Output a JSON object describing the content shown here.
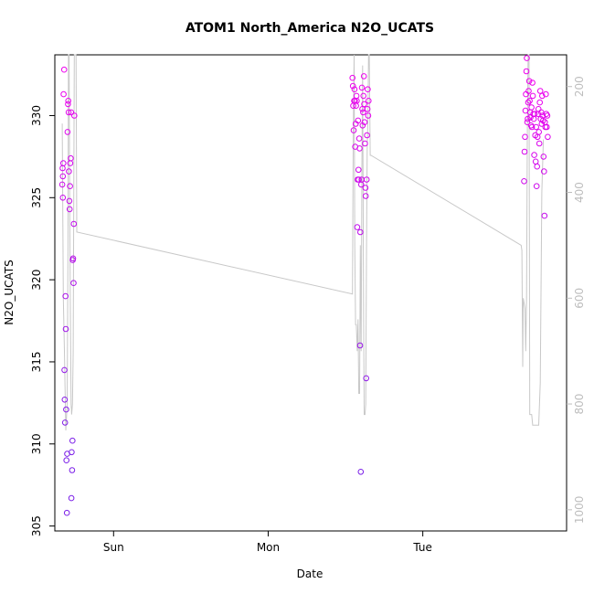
{
  "chart_data": {
    "type": "scatter",
    "title": "ATOM1 North_America N2O_UCATS",
    "xlabel": "Date",
    "ylabel": "N2O_UCATS",
    "x_ticks": [
      "Sun",
      "Mon",
      "Tue"
    ],
    "x_tick_days": [
      1,
      2,
      3
    ],
    "x_range_days": [
      0.62,
      3.93
    ],
    "ylim": [
      304.7,
      333.7
    ],
    "y_ticks": [
      305,
      310,
      315,
      320,
      325,
      330
    ],
    "right_axis": {
      "lim": [
        1040,
        140
      ],
      "ticks": [
        200,
        400,
        600,
        800,
        1000
      ],
      "color": "#bdbdbd"
    },
    "point_color_low": "#7b1fe8",
    "point_color_high": "#ee00ee",
    "pressure_color": "#c8c8c8",
    "points": [
      [
        0.668,
        325.8
      ],
      [
        0.67,
        326.8
      ],
      [
        0.672,
        326.3
      ],
      [
        0.672,
        325.0
      ],
      [
        0.675,
        327.1
      ],
      [
        0.677,
        331.3
      ],
      [
        0.68,
        332.8
      ],
      [
        0.682,
        314.5
      ],
      [
        0.684,
        312.7
      ],
      [
        0.686,
        311.3
      ],
      [
        0.689,
        319.0
      ],
      [
        0.691,
        317.0
      ],
      [
        0.693,
        312.1
      ],
      [
        0.695,
        309.0
      ],
      [
        0.698,
        305.8
      ],
      [
        0.7,
        309.4
      ],
      [
        0.702,
        329.0
      ],
      [
        0.705,
        330.7
      ],
      [
        0.707,
        330.9
      ],
      [
        0.709,
        330.2
      ],
      [
        0.711,
        326.6
      ],
      [
        0.714,
        324.8
      ],
      [
        0.716,
        324.3
      ],
      [
        0.718,
        325.7
      ],
      [
        0.72,
        327.1
      ],
      [
        0.723,
        327.4
      ],
      [
        0.725,
        330.2
      ],
      [
        0.727,
        306.7
      ],
      [
        0.729,
        309.5
      ],
      [
        0.732,
        308.4
      ],
      [
        0.734,
        310.2
      ],
      [
        0.736,
        321.2
      ],
      [
        0.738,
        321.3
      ],
      [
        0.741,
        319.8
      ],
      [
        0.743,
        323.4
      ],
      [
        0.746,
        330.0
      ],
      [
        2.545,
        332.3
      ],
      [
        2.548,
        331.8
      ],
      [
        2.55,
        330.6
      ],
      [
        2.553,
        329.1
      ],
      [
        2.556,
        330.9
      ],
      [
        2.558,
        331.6
      ],
      [
        2.561,
        330.9
      ],
      [
        2.563,
        328.1
      ],
      [
        2.566,
        329.5
      ],
      [
        2.568,
        330.6
      ],
      [
        2.571,
        331.2
      ],
      [
        2.573,
        330.9
      ],
      [
        2.576,
        323.2
      ],
      [
        2.579,
        326.1
      ],
      [
        2.581,
        329.7
      ],
      [
        2.584,
        326.7
      ],
      [
        2.586,
        326.1
      ],
      [
        2.589,
        328.6
      ],
      [
        2.591,
        328.0
      ],
      [
        2.594,
        316.0
      ],
      [
        2.596,
        322.9
      ],
      [
        2.599,
        308.3
      ],
      [
        2.601,
        325.8
      ],
      [
        2.604,
        326.1
      ],
      [
        2.606,
        331.7
      ],
      [
        2.609,
        330.4
      ],
      [
        2.611,
        329.4
      ],
      [
        2.614,
        330.2
      ],
      [
        2.616,
        331.2
      ],
      [
        2.619,
        332.4
      ],
      [
        2.621,
        330.7
      ],
      [
        2.624,
        329.6
      ],
      [
        2.626,
        328.3
      ],
      [
        2.629,
        325.6
      ],
      [
        2.631,
        325.1
      ],
      [
        2.634,
        314.0
      ],
      [
        2.637,
        326.1
      ],
      [
        2.639,
        328.8
      ],
      [
        2.642,
        330.4
      ],
      [
        2.644,
        331.6
      ],
      [
        2.647,
        330.0
      ],
      [
        2.649,
        330.9
      ],
      [
        3.655,
        326.0
      ],
      [
        3.658,
        327.8
      ],
      [
        3.661,
        328.7
      ],
      [
        3.664,
        330.3
      ],
      [
        3.667,
        331.3
      ],
      [
        3.67,
        332.7
      ],
      [
        3.673,
        333.5
      ],
      [
        3.676,
        329.6
      ],
      [
        3.679,
        329.8
      ],
      [
        3.682,
        330.8
      ],
      [
        3.685,
        331.5
      ],
      [
        3.688,
        332.1
      ],
      [
        3.691,
        330.9
      ],
      [
        3.694,
        330.2
      ],
      [
        3.697,
        329.9
      ],
      [
        3.7,
        329.4
      ],
      [
        3.703,
        330.5
      ],
      [
        3.706,
        329.3
      ],
      [
        3.709,
        332.0
      ],
      [
        3.712,
        331.2
      ],
      [
        3.715,
        330.1
      ],
      [
        3.718,
        329.8
      ],
      [
        3.721,
        327.6
      ],
      [
        3.724,
        330.1
      ],
      [
        3.727,
        328.8
      ],
      [
        3.73,
        327.2
      ],
      [
        3.733,
        329.3
      ],
      [
        3.736,
        325.7
      ],
      [
        3.739,
        326.9
      ],
      [
        3.742,
        328.7
      ],
      [
        3.745,
        330.1
      ],
      [
        3.748,
        330.4
      ],
      [
        3.751,
        329.0
      ],
      [
        3.754,
        328.3
      ],
      [
        3.757,
        330.8
      ],
      [
        3.76,
        331.5
      ],
      [
        3.763,
        329.8
      ],
      [
        3.766,
        330.2
      ],
      [
        3.769,
        329.5
      ],
      [
        3.772,
        331.2
      ],
      [
        3.775,
        330.0
      ],
      [
        3.778,
        329.7
      ],
      [
        3.781,
        327.5
      ],
      [
        3.784,
        326.6
      ],
      [
        3.787,
        323.9
      ],
      [
        3.79,
        329.6
      ],
      [
        3.793,
        329.3
      ],
      [
        3.796,
        331.3
      ],
      [
        3.799,
        330.1
      ],
      [
        3.802,
        329.3
      ],
      [
        3.805,
        330.0
      ],
      [
        3.808,
        328.7
      ]
    ],
    "pressure_line": [
      [
        0.668,
        270
      ],
      [
        0.675,
        600
      ],
      [
        0.682,
        700
      ],
      [
        0.691,
        850
      ],
      [
        0.7,
        800
      ],
      [
        0.705,
        500
      ],
      [
        0.708,
        140
      ],
      [
        0.712,
        140
      ],
      [
        0.716,
        400
      ],
      [
        0.72,
        600
      ],
      [
        0.725,
        800
      ],
      [
        0.729,
        820
      ],
      [
        0.734,
        800
      ],
      [
        0.739,
        700
      ],
      [
        0.746,
        140
      ],
      [
        0.752,
        140
      ],
      [
        0.757,
        140
      ],
      [
        0.762,
        475
      ],
      [
        2.545,
        592
      ],
      [
        2.55,
        300
      ],
      [
        2.556,
        140
      ],
      [
        2.56,
        500
      ],
      [
        2.565,
        650
      ],
      [
        2.57,
        650
      ],
      [
        2.576,
        700
      ],
      [
        2.581,
        640
      ],
      [
        2.586,
        780
      ],
      [
        2.591,
        780
      ],
      [
        2.596,
        500
      ],
      [
        2.601,
        700
      ],
      [
        2.606,
        360
      ],
      [
        2.611,
        160
      ],
      [
        2.617,
        640
      ],
      [
        2.621,
        820
      ],
      [
        2.626,
        820
      ],
      [
        2.631,
        800
      ],
      [
        2.636,
        500
      ],
      [
        2.64,
        320
      ],
      [
        2.645,
        260
      ],
      [
        2.649,
        140
      ],
      [
        2.654,
        140
      ],
      [
        2.66,
        330
      ],
      [
        2.665,
        330
      ],
      [
        3.636,
        500
      ],
      [
        3.641,
        510
      ],
      [
        3.646,
        730
      ],
      [
        3.65,
        600
      ],
      [
        3.656,
        610
      ],
      [
        3.661,
        620
      ],
      [
        3.666,
        700
      ],
      [
        3.671,
        600
      ],
      [
        3.676,
        300
      ],
      [
        3.681,
        140
      ],
      [
        3.687,
        140
      ],
      [
        3.692,
        820
      ],
      [
        3.699,
        820
      ],
      [
        3.704,
        820
      ],
      [
        3.711,
        840
      ],
      [
        3.718,
        840
      ],
      [
        3.724,
        840
      ],
      [
        3.73,
        840
      ],
      [
        3.736,
        840
      ],
      [
        3.742,
        840
      ],
      [
        3.75,
        840
      ],
      [
        3.76,
        760
      ],
      [
        3.77,
        400
      ],
      [
        3.78,
        300
      ]
    ]
  }
}
